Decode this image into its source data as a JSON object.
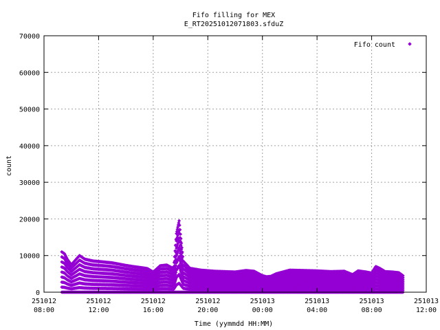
{
  "chart_data": {
    "type": "scatter",
    "title": "Fifo filling for MEX",
    "subtitle": "E_RT20251012071803.sfduZ",
    "xlabel": "Time (yymmdd HH:MM)",
    "ylabel": "count",
    "grid": true,
    "legend_position": "top-right",
    "xlim_hours": [
      8,
      36
    ],
    "ylim": [
      0,
      70000
    ],
    "x_ticks": [
      {
        "hour": 8,
        "date": "251012",
        "time": "08:00"
      },
      {
        "hour": 12,
        "date": "251012",
        "time": "12:00"
      },
      {
        "hour": 16,
        "date": "251012",
        "time": "16:00"
      },
      {
        "hour": 20,
        "date": "251012",
        "time": "20:00"
      },
      {
        "hour": 24,
        "date": "251013",
        "time": "00:00"
      },
      {
        "hour": 28,
        "date": "251013",
        "time": "04:00"
      },
      {
        "hour": 32,
        "date": "251013",
        "time": "08:00"
      },
      {
        "hour": 36,
        "date": "251013",
        "time": "12:00"
      }
    ],
    "y_ticks": [
      0,
      10000,
      20000,
      30000,
      40000,
      50000,
      60000,
      70000
    ],
    "series": [
      {
        "name": "Fifo count",
        "color": "#9400d3",
        "marker": "diamond",
        "envelope_hours": [
          9.3,
          9.5,
          9.7,
          10.0,
          10.6,
          11.0,
          11.6,
          12.2,
          13.0,
          14.0,
          14.5,
          15.3,
          15.6,
          16.0,
          16.5,
          17.0,
          17.3,
          17.5,
          17.7,
          17.9,
          18.2,
          18.7,
          19.5,
          20.5,
          22.0,
          22.8,
          23.4,
          24.0,
          24.3,
          24.6,
          25.0,
          26.0,
          28.0,
          29.0,
          30.0,
          30.6,
          31.0,
          31.6,
          32.0,
          32.3,
          32.6,
          33.0,
          33.5,
          34.0,
          34.3
        ],
        "envelope_max": [
          11000,
          10500,
          9000,
          7500,
          10000,
          9000,
          8500,
          8300,
          8000,
          7300,
          7000,
          6600,
          6400,
          5500,
          7200,
          7400,
          6800,
          6500,
          16000,
          19500,
          8500,
          6500,
          6000,
          5700,
          5500,
          5900,
          5700,
          4500,
          4200,
          4300,
          5000,
          6000,
          5800,
          5600,
          5700,
          4800,
          5800,
          5500,
          5200,
          7000,
          6500,
          5600,
          5500,
          5300,
          4500
        ]
      }
    ]
  }
}
